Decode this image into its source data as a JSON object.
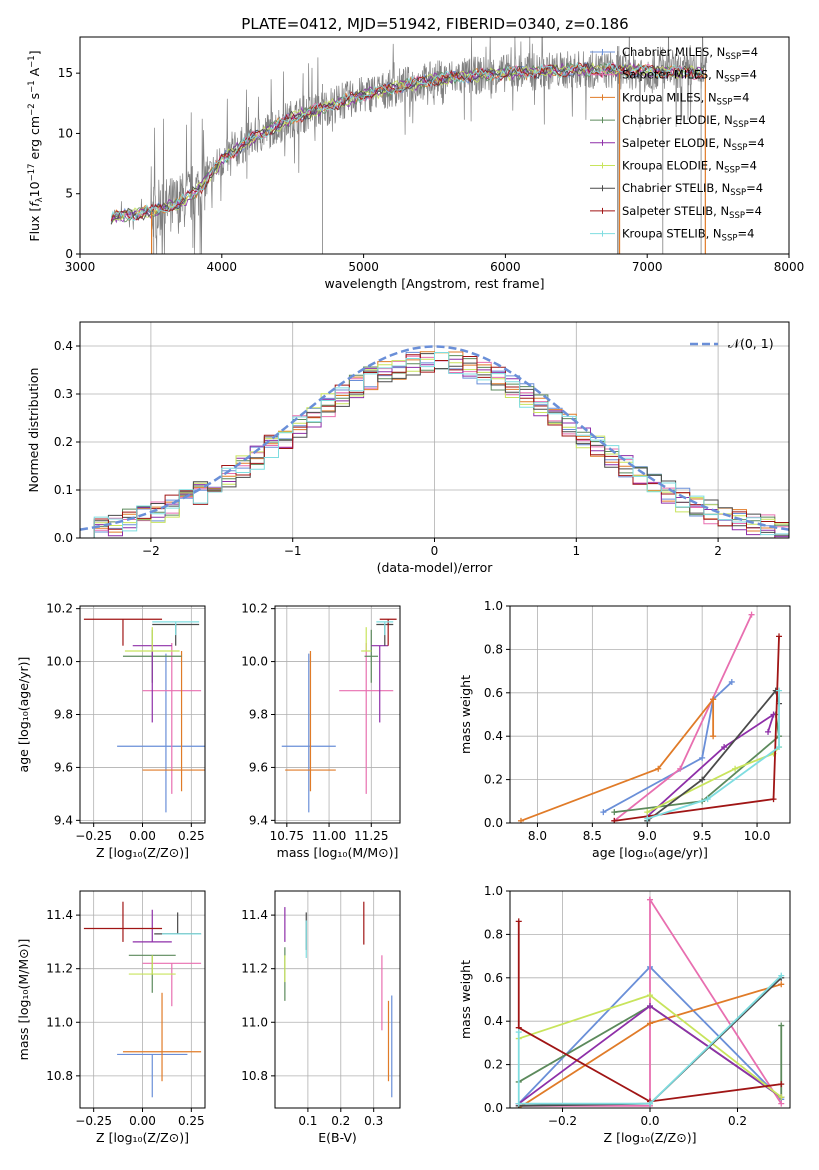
{
  "title": "PLATE=0412, MJD=51942, FIBERID=0340, z=0.186",
  "colors": {
    "chabrier_miles": "#6a8fd8",
    "salpeter_miles": "#e86fb0",
    "kroupa_miles": "#e07b28",
    "chabrier_elodie": "#5c8a5c",
    "salpeter_elodie": "#8e2fa8",
    "kroupa_elodie": "#c8e45c",
    "chabrier_stelib": "#4a4a4a",
    "salpeter_stelib": "#a01515",
    "kroupa_stelib": "#7fdde0",
    "data_spectrum": "#808080",
    "grid": "#b0b0b0",
    "normal_curve": "#6a8fd8"
  },
  "chart_data": [
    {
      "id": "spectrum",
      "type": "line",
      "xlabel": "wavelength [Angstrom, rest frame]",
      "ylabel": "Flux [f_λ10⁻¹⁷ erg cm⁻² s⁻¹ A⁻¹]",
      "ylabel_parts": [
        "Flux [",
        "f",
        "λ",
        "10",
        "−17",
        " erg cm",
        "−2",
        " s",
        "−1",
        " A",
        "−1",
        "]"
      ],
      "xlim": [
        3000,
        8000
      ],
      "ylim": [
        0,
        18
      ],
      "xticks": [
        3000,
        4000,
        5000,
        6000,
        7000,
        8000
      ],
      "yticks": [
        0,
        5,
        10,
        15
      ],
      "grid": false,
      "legend_position": "top-right",
      "legend": [
        {
          "label": "Chabrier MILES, N",
          "sub": "SSP",
          "suffix": "=4",
          "color_key": "chabrier_miles"
        },
        {
          "label": "Salpeter MILES, N",
          "sub": "SSP",
          "suffix": "=4",
          "color_key": "salpeter_miles"
        },
        {
          "label": "Kroupa MILES, N",
          "sub": "SSP",
          "suffix": "=4",
          "color_key": "kroupa_miles"
        },
        {
          "label": "Chabrier ELODIE, N",
          "sub": "SSP",
          "suffix": "=4",
          "color_key": "chabrier_elodie"
        },
        {
          "label": "Salpeter ELODIE, N",
          "sub": "SSP",
          "suffix": "=4",
          "color_key": "salpeter_elodie"
        },
        {
          "label": "Kroupa ELODIE, N",
          "sub": "SSP",
          "suffix": "=4",
          "color_key": "kroupa_elodie"
        },
        {
          "label": "Chabrier STELIB, N",
          "sub": "SSP",
          "suffix": "=4",
          "color_key": "chabrier_stelib"
        },
        {
          "label": "Salpeter STELIB, N",
          "sub": "SSP",
          "suffix": "=4",
          "color_key": "salpeter_stelib"
        },
        {
          "label": "Kroupa STELIB, N",
          "sub": "SSP",
          "suffix": "=4",
          "color_key": "kroupa_stelib"
        }
      ],
      "continuum": {
        "x": [
          3200,
          3500,
          3700,
          3850,
          4000,
          4200,
          4500,
          5000,
          5500,
          6000,
          6500,
          7000,
          7400
        ],
        "y": [
          3.0,
          3.5,
          4.2,
          5.5,
          7.8,
          9.5,
          11.3,
          13.2,
          14.5,
          15.0,
          15.3,
          15.2,
          15.0
        ]
      }
    },
    {
      "id": "residuals",
      "type": "line",
      "xlabel": "(data-model)/error",
      "ylabel": "Normed distribution",
      "xlim": [
        -2.5,
        2.5
      ],
      "ylim": [
        0,
        0.45
      ],
      "xticks": [
        -2,
        -1,
        0,
        1,
        2
      ],
      "yticks": [
        0.0,
        0.1,
        0.2,
        0.3,
        0.4
      ],
      "grid": true,
      "legend_position": "top-right",
      "normal_label": "𝒩(0, 1)",
      "bin_width": 0.1
    },
    {
      "id": "age_vs_Z",
      "type": "scatter",
      "xlabel": "Z [log₁₀(Z/Z⊙)]",
      "ylabel": "age  [log₁₀(age/yr)]",
      "xlim": [
        -0.32,
        0.32
      ],
      "ylim": [
        9.39,
        10.21
      ],
      "xticks": [
        -0.25,
        0.0,
        0.25
      ],
      "yticks": [
        9.4,
        9.6,
        9.8,
        10.0,
        10.2
      ],
      "grid": true,
      "points": [
        {
          "color_key": "chabrier_miles",
          "x": 0.12,
          "xerr": 0.25,
          "y": 9.68,
          "yerr_lo": 0.25,
          "yerr_hi": 0.35
        },
        {
          "color_key": "salpeter_miles",
          "x": 0.15,
          "xerr": 0.15,
          "y": 9.89,
          "yerr_lo": 0.39,
          "yerr_hi": 0.18
        },
        {
          "color_key": "kroupa_miles",
          "x": 0.2,
          "xerr": 0.2,
          "y": 9.59,
          "yerr_lo": 0.08,
          "yerr_hi": 0.45
        },
        {
          "color_key": "chabrier_elodie",
          "x": 0.05,
          "xerr": 0.15,
          "y": 10.02,
          "yerr_lo": 0.1,
          "yerr_hi": 0.1
        },
        {
          "color_key": "salpeter_elodie",
          "x": 0.05,
          "xerr": 0.1,
          "y": 10.06,
          "yerr_lo": 0.29,
          "yerr_hi": 0.0
        },
        {
          "color_key": "kroupa_elodie",
          "x": 0.05,
          "xerr": 0.14,
          "y": 10.04,
          "yerr_lo": 0.0,
          "yerr_hi": 0.09
        },
        {
          "color_key": "chabrier_stelib",
          "x": 0.17,
          "xerr": 0.12,
          "y": 10.14,
          "yerr_lo": 0.08,
          "yerr_hi": 0.0
        },
        {
          "color_key": "salpeter_stelib",
          "x": -0.1,
          "xerr": 0.2,
          "y": 10.16,
          "yerr_lo": 0.1,
          "yerr_hi": 0.0
        },
        {
          "color_key": "kroupa_stelib",
          "x": 0.17,
          "xerr": 0.12,
          "y": 10.15,
          "yerr_lo": 0.05,
          "yerr_hi": 0.0
        }
      ]
    },
    {
      "id": "age_vs_mass",
      "type": "scatter",
      "xlabel": "mass [log₁₀(M/M⊙)]",
      "ylabel": "",
      "xlim": [
        10.68,
        11.42
      ],
      "ylim": [
        9.39,
        10.21
      ],
      "xticks": [
        10.75,
        11.0,
        11.25
      ],
      "xtick_labels": [
        "10.75",
        "11.00",
        "11.25"
      ],
      "yticks": [
        9.4,
        9.6,
        9.8,
        10.0,
        10.2
      ],
      "grid": true,
      "points": [
        {
          "color_key": "chabrier_miles",
          "x": 10.88,
          "xerr": 0.16,
          "y": 9.68,
          "yerr_lo": 0.25,
          "yerr_hi": 0.35
        },
        {
          "color_key": "salpeter_miles",
          "x": 11.22,
          "xerr": 0.16,
          "y": 9.89,
          "yerr_lo": 0.39,
          "yerr_hi": 0.18
        },
        {
          "color_key": "kroupa_miles",
          "x": 10.89,
          "xerr": 0.15,
          "y": 9.59,
          "yerr_lo": 0.08,
          "yerr_hi": 0.45
        },
        {
          "color_key": "chabrier_elodie",
          "x": 11.25,
          "xerr": 0.04,
          "y": 10.02,
          "yerr_lo": 0.1,
          "yerr_hi": 0.1
        },
        {
          "color_key": "salpeter_elodie",
          "x": 11.3,
          "xerr": 0.05,
          "y": 10.06,
          "yerr_lo": 0.29,
          "yerr_hi": 0.0
        },
        {
          "color_key": "kroupa_elodie",
          "x": 11.22,
          "xerr": 0.03,
          "y": 10.04,
          "yerr_lo": 0.0,
          "yerr_hi": 0.09
        },
        {
          "color_key": "chabrier_stelib",
          "x": 11.33,
          "xerr": 0.05,
          "y": 10.14,
          "yerr_lo": 0.08,
          "yerr_hi": 0.0
        },
        {
          "color_key": "salpeter_stelib",
          "x": 11.35,
          "xerr": 0.05,
          "y": 10.16,
          "yerr_lo": 0.1,
          "yerr_hi": 0.0
        },
        {
          "color_key": "kroupa_stelib",
          "x": 11.33,
          "xerr": 0.05,
          "y": 10.15,
          "yerr_lo": 0.05,
          "yerr_hi": 0.0
        }
      ]
    },
    {
      "id": "weight_vs_age",
      "type": "line",
      "xlabel": "age  [log₁₀(age/yr)]",
      "ylabel": "mass weight",
      "xlim": [
        7.75,
        10.3
      ],
      "ylim": [
        0,
        1.0
      ],
      "xticks": [
        8.0,
        8.5,
        9.0,
        9.5,
        10.0
      ],
      "yticks": [
        0.0,
        0.2,
        0.4,
        0.6,
        0.8,
        1.0
      ],
      "grid": true,
      "series": [
        {
          "color_key": "chabrier_miles",
          "x": [
            8.6,
            9.5,
            9.6,
            9.77
          ],
          "y": [
            0.05,
            0.3,
            0.57,
            0.65
          ]
        },
        {
          "color_key": "salpeter_miles",
          "x": [
            8.7,
            9.3,
            9.95
          ],
          "y": [
            0.01,
            0.25,
            0.96
          ]
        },
        {
          "color_key": "kroupa_miles",
          "x": [
            7.85,
            9.1,
            9.6,
            9.6
          ],
          "y": [
            0.01,
            0.25,
            0.57,
            0.4
          ]
        },
        {
          "color_key": "chabrier_elodie",
          "x": [
            8.7,
            9.5,
            10.2,
            10.17
          ],
          "y": [
            0.05,
            0.1,
            0.4,
            0.5
          ]
        },
        {
          "color_key": "salpeter_elodie",
          "x": [
            9.0,
            9.7,
            10.15,
            10.1
          ],
          "y": [
            0.03,
            0.35,
            0.5,
            0.42
          ]
        },
        {
          "color_key": "kroupa_elodie",
          "x": [
            9.0,
            9.8,
            10.15,
            10.2
          ],
          "y": [
            0.05,
            0.25,
            0.32,
            0.35
          ]
        },
        {
          "color_key": "chabrier_stelib",
          "x": [
            9.0,
            9.5,
            10.17,
            10.2
          ],
          "y": [
            0.01,
            0.2,
            0.61,
            0.55
          ]
        },
        {
          "color_key": "salpeter_stelib",
          "x": [
            8.7,
            10.15,
            10.2
          ],
          "y": [
            0.01,
            0.11,
            0.86
          ]
        },
        {
          "color_key": "kroupa_stelib",
          "x": [
            9.0,
            9.55,
            10.2,
            10.2
          ],
          "y": [
            0.02,
            0.11,
            0.35,
            0.61
          ]
        }
      ]
    },
    {
      "id": "mass_vs_Z",
      "type": "scatter",
      "xlabel": "Z [log₁₀(Z/Z⊙)]",
      "ylabel": "mass [log₁₀(M/M⊙)]",
      "xlim": [
        -0.32,
        0.32
      ],
      "ylim": [
        10.68,
        11.49
      ],
      "xticks": [
        -0.25,
        0.0,
        0.25
      ],
      "yticks": [
        10.8,
        11.0,
        11.2,
        11.4
      ],
      "grid": true,
      "points": [
        {
          "color_key": "chabrier_miles",
          "x": 0.05,
          "xerr": 0.18,
          "y": 10.88,
          "yerr_lo": 0.16,
          "yerr_hi": 0.0
        },
        {
          "color_key": "salpeter_miles",
          "x": 0.15,
          "xerr": 0.15,
          "y": 11.22,
          "yerr_lo": 0.16,
          "yerr_hi": 0.0
        },
        {
          "color_key": "kroupa_miles",
          "x": 0.1,
          "xerr": 0.2,
          "y": 10.89,
          "yerr_lo": 0.11,
          "yerr_hi": 0.22
        },
        {
          "color_key": "chabrier_elodie",
          "x": 0.05,
          "xerr": 0.12,
          "y": 11.25,
          "yerr_lo": 0.14,
          "yerr_hi": 0.0
        },
        {
          "color_key": "salpeter_elodie",
          "x": 0.05,
          "xerr": 0.1,
          "y": 11.3,
          "yerr_lo": 0.0,
          "yerr_hi": 0.12
        },
        {
          "color_key": "kroupa_elodie",
          "x": 0.05,
          "xerr": 0.12,
          "y": 11.18,
          "yerr_lo": 0.0,
          "yerr_hi": 0.07
        },
        {
          "color_key": "chabrier_stelib",
          "x": 0.18,
          "xerr": 0.12,
          "y": 11.33,
          "yerr_lo": 0.0,
          "yerr_hi": 0.08
        },
        {
          "color_key": "salpeter_stelib",
          "x": -0.1,
          "xerr": 0.2,
          "y": 11.35,
          "yerr_lo": 0.05,
          "yerr_hi": 0.1
        },
        {
          "color_key": "kroupa_stelib",
          "x": 0.2,
          "xerr": 0.1,
          "y": 11.33,
          "yerr_lo": 0.0,
          "yerr_hi": 0.0
        }
      ]
    },
    {
      "id": "mass_vs_ebv",
      "type": "scatter",
      "xlabel": "E(B-V)",
      "ylabel": "",
      "xlim": [
        0.0,
        0.38
      ],
      "ylim": [
        10.68,
        11.49
      ],
      "xticks": [
        0.1,
        0.2,
        0.3
      ],
      "yticks": [
        10.8,
        11.0,
        11.2,
        11.4
      ],
      "grid": true,
      "points": [
        {
          "color_key": "chabrier_miles",
          "x": 0.355,
          "y": 10.9,
          "yerr_lo": 0.18,
          "yerr_hi": 0.2
        },
        {
          "color_key": "salpeter_miles",
          "x": 0.325,
          "y": 11.15,
          "yerr_lo": 0.18,
          "yerr_hi": 0.1
        },
        {
          "color_key": "kroupa_miles",
          "x": 0.345,
          "y": 10.95,
          "yerr_lo": 0.17,
          "yerr_hi": 0.13
        },
        {
          "color_key": "chabrier_elodie",
          "x": 0.03,
          "y": 11.2,
          "yerr_lo": 0.12,
          "yerr_hi": 0.08
        },
        {
          "color_key": "salpeter_elodie",
          "x": 0.03,
          "y": 11.35,
          "yerr_lo": 0.05,
          "yerr_hi": 0.08
        },
        {
          "color_key": "kroupa_elodie",
          "x": 0.03,
          "y": 11.2,
          "yerr_lo": 0.05,
          "yerr_hi": 0.05
        },
        {
          "color_key": "chabrier_stelib",
          "x": 0.095,
          "y": 11.35,
          "yerr_lo": 0.08,
          "yerr_hi": 0.06
        },
        {
          "color_key": "salpeter_stelib",
          "x": 0.27,
          "y": 11.35,
          "yerr_lo": 0.06,
          "yerr_hi": 0.1
        },
        {
          "color_key": "kroupa_stelib",
          "x": 0.095,
          "y": 11.3,
          "yerr_lo": 0.06,
          "yerr_hi": 0.08
        }
      ]
    },
    {
      "id": "weight_vs_Z",
      "type": "line",
      "xlabel": "Z [log₁₀(Z/Z⊙)]",
      "ylabel": "mass weight",
      "xlim": [
        -0.32,
        0.32
      ],
      "ylim": [
        0,
        1.0
      ],
      "xticks": [
        -0.2,
        0.0,
        0.2
      ],
      "yticks": [
        0.0,
        0.2,
        0.4,
        0.6,
        0.8,
        1.0
      ],
      "grid": true,
      "series": [
        {
          "color_key": "chabrier_miles",
          "x": [
            -0.3,
            0.0,
            0.3
          ],
          "y": [
            0.02,
            0.65,
            0.04
          ]
        },
        {
          "color_key": "salpeter_miles",
          "x": [
            -0.3,
            0.0,
            0.0,
            0.3
          ],
          "y": [
            0.01,
            0.01,
            0.96,
            0.02
          ]
        },
        {
          "color_key": "kroupa_miles",
          "x": [
            -0.3,
            0.0,
            0.3
          ],
          "y": [
            0.0,
            0.39,
            0.57
          ]
        },
        {
          "color_key": "chabrier_elodie",
          "x": [
            -0.3,
            0.0,
            0.3,
            0.3
          ],
          "y": [
            0.12,
            0.47,
            0.05,
            0.38
          ]
        },
        {
          "color_key": "salpeter_elodie",
          "x": [
            -0.3,
            0.0,
            0.3
          ],
          "y": [
            0.02,
            0.47,
            0.05
          ]
        },
        {
          "color_key": "kroupa_elodie",
          "x": [
            -0.3,
            0.0,
            0.3
          ],
          "y": [
            0.32,
            0.52,
            0.05
          ]
        },
        {
          "color_key": "chabrier_stelib",
          "x": [
            -0.3,
            0.0,
            0.3
          ],
          "y": [
            0.01,
            0.02,
            0.6
          ]
        },
        {
          "color_key": "salpeter_stelib",
          "x": [
            -0.3,
            -0.3,
            0.0,
            0.3
          ],
          "y": [
            0.86,
            0.37,
            0.03,
            0.11
          ]
        },
        {
          "color_key": "kroupa_stelib",
          "x": [
            -0.3,
            -0.3,
            0.0,
            0.3
          ],
          "y": [
            0.35,
            0.02,
            0.02,
            0.61
          ]
        }
      ]
    }
  ]
}
